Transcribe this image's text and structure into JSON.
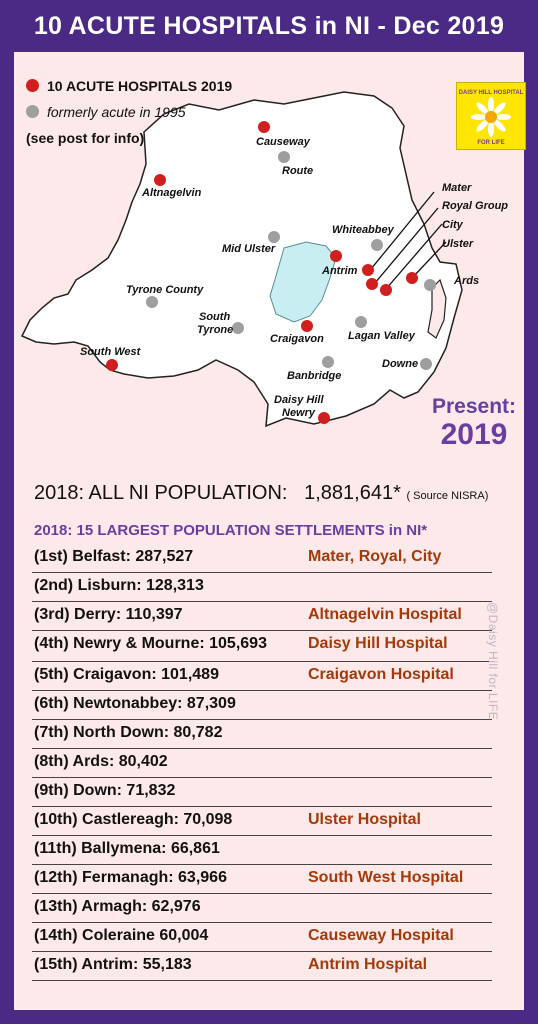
{
  "title": "10 ACUTE HOSPITALS in NI - Dec 2019",
  "legend": {
    "acute_label": "10 ACUTE HOSPITALS 2019",
    "former_label": "formerly acute in 1995",
    "note": "(see post for info)",
    "acute_color": "#d11f1f",
    "former_color": "#9e9e9e"
  },
  "map_labels": {
    "causeway": "Causeway",
    "route": "Route",
    "altnagelvin": "Altnagelvin",
    "mater": "Mater",
    "royal_group": "Royal Group",
    "city": "City",
    "ulster": "Ulster",
    "whiteabbey": "Whiteabbey",
    "mid_ulster": "Mid Ulster",
    "antrim": "Antrim",
    "ards": "Ards",
    "tyrone_county": "Tyrone County",
    "south_tyrone_1": "South",
    "south_tyrone_2": "Tyrone",
    "craigavon": "Craigavon",
    "lagan_valley": "Lagan Valley",
    "south_west": "South West",
    "banbridge": "Banbridge",
    "downe": "Downe",
    "daisy_hill_1": "Daisy Hill",
    "daisy_hill_2": "Newry"
  },
  "logo": {
    "top_text": "DAISY HILL HOSPITAL",
    "bottom_text": "FOR LIFE"
  },
  "present": {
    "label": "Present:",
    "year": "2019"
  },
  "population": {
    "label": "2018: ALL NI POPULATION:",
    "value": "1,881,641*",
    "source": "( Source NISRA)"
  },
  "settlements": {
    "heading": "2018: 15 LARGEST POPULATION SETTLEMENTS in NI*",
    "rows": [
      {
        "rank": "(1st)",
        "text": "Belfast: 287,527",
        "hospital": "Mater, Royal, City"
      },
      {
        "rank": "(2nd)",
        "text": "Lisburn: 128,313",
        "hospital": ""
      },
      {
        "rank": "(3rd)",
        "text": "Derry: 110,397",
        "hospital": "Altnagelvin Hospital"
      },
      {
        "rank": "(4th)",
        "text": "Newry & Mourne: 105,693",
        "hospital": "Daisy Hill Hospital"
      },
      {
        "rank": "(5th)",
        "text": "Craigavon: 101,489",
        "hospital": "Craigavon Hospital"
      },
      {
        "rank": "(6th)",
        "text": "Newtonabbey: 87,309",
        "hospital": ""
      },
      {
        "rank": "(7th)",
        "text": "North Down: 80,782",
        "hospital": ""
      },
      {
        "rank": "(8th)",
        "text": "Ards: 80,402",
        "hospital": ""
      },
      {
        "rank": "(9th)",
        "text": "Down: 71,832",
        "hospital": ""
      },
      {
        "rank": "(10th)",
        "text": "Castlereagh: 70,098",
        "hospital": "Ulster Hospital"
      },
      {
        "rank": "(11th)",
        "text": "Ballymena: 66,861",
        "hospital": ""
      },
      {
        "rank": "(12th)",
        "text": "Fermanagh: 63,966",
        "hospital": "South West Hospital"
      },
      {
        "rank": "(13th)",
        "text": "Armagh: 62,976",
        "hospital": ""
      },
      {
        "rank": "(14th)",
        "text": "Coleraine 60,004",
        "hospital": "Causeway Hospital"
      },
      {
        "rank": "(15th)",
        "text": "Antrim: 55,183",
        "hospital": "Antrim Hospital"
      }
    ]
  },
  "credit": "@Daisy Hill for LIFE"
}
